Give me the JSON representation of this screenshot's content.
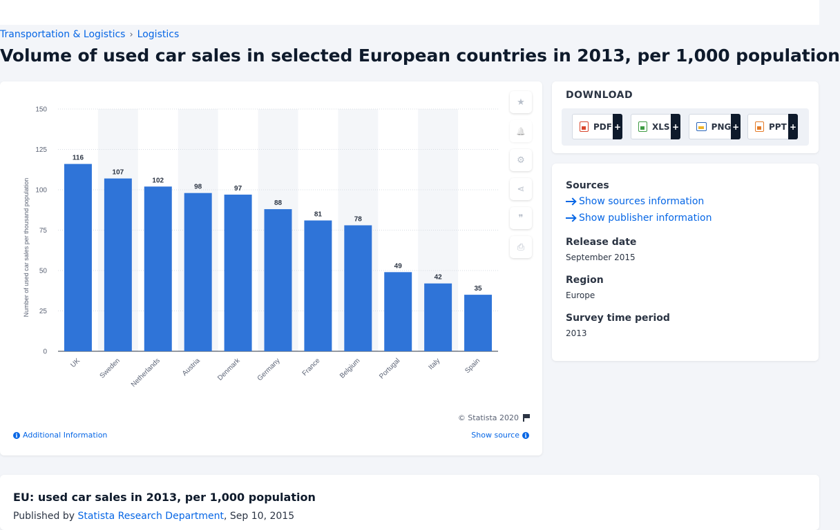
{
  "breadcrumb": {
    "items": [
      "Transportation & Logistics",
      "Logistics"
    ],
    "separator": "›"
  },
  "page_title": "Volume of used car sales in selected European countries in 2013, per 1,000 population",
  "chart_data": {
    "type": "bar",
    "title": "",
    "xlabel": "",
    "ylabel": "Number of used car sales per thousand population",
    "categories": [
      "UK",
      "Sweden",
      "Netherlands",
      "Austria",
      "Denmark",
      "Germany",
      "France",
      "Belgium",
      "Portugal",
      "Italy",
      "Spain"
    ],
    "values": [
      116,
      107,
      102,
      98,
      97,
      88,
      81,
      78,
      49,
      42,
      35
    ],
    "ylim": [
      0,
      150
    ],
    "yticks": [
      0,
      25,
      50,
      75,
      100,
      125,
      150
    ],
    "grid": true,
    "bar_color": "#2f74d8",
    "stripe_color": "#f4f6f9"
  },
  "chart_footer": {
    "copyright": "© Statista 2020",
    "additional_info": "Additional Information",
    "show_source": "Show source"
  },
  "tools": [
    {
      "name": "star",
      "glyph": "★"
    },
    {
      "name": "bell",
      "glyph": "🔔"
    },
    {
      "name": "gear",
      "glyph": "⚙"
    },
    {
      "name": "share",
      "glyph": "⋖"
    },
    {
      "name": "quote",
      "glyph": "❞"
    },
    {
      "name": "print",
      "glyph": "⎙"
    }
  ],
  "download": {
    "title": "DOWNLOAD",
    "buttons": [
      {
        "label": "PDF",
        "plus": "+"
      },
      {
        "label": "XLS",
        "plus": "+"
      },
      {
        "label": "PNG",
        "plus": "+"
      },
      {
        "label": "PPT",
        "plus": "+"
      }
    ]
  },
  "meta": {
    "sources_heading": "Sources",
    "show_sources": "Show sources information",
    "show_publisher": "Show publisher information",
    "release_heading": "Release date",
    "release_value": "September 2015",
    "region_heading": "Region",
    "region_value": "Europe",
    "survey_heading": "Survey time period",
    "survey_value": "2013"
  },
  "publication": {
    "title": "EU: used car sales in 2013, per 1,000 population",
    "published_by": "Published by",
    "publisher": "Statista Research Department",
    "date": ", Sep 10, 2015"
  }
}
